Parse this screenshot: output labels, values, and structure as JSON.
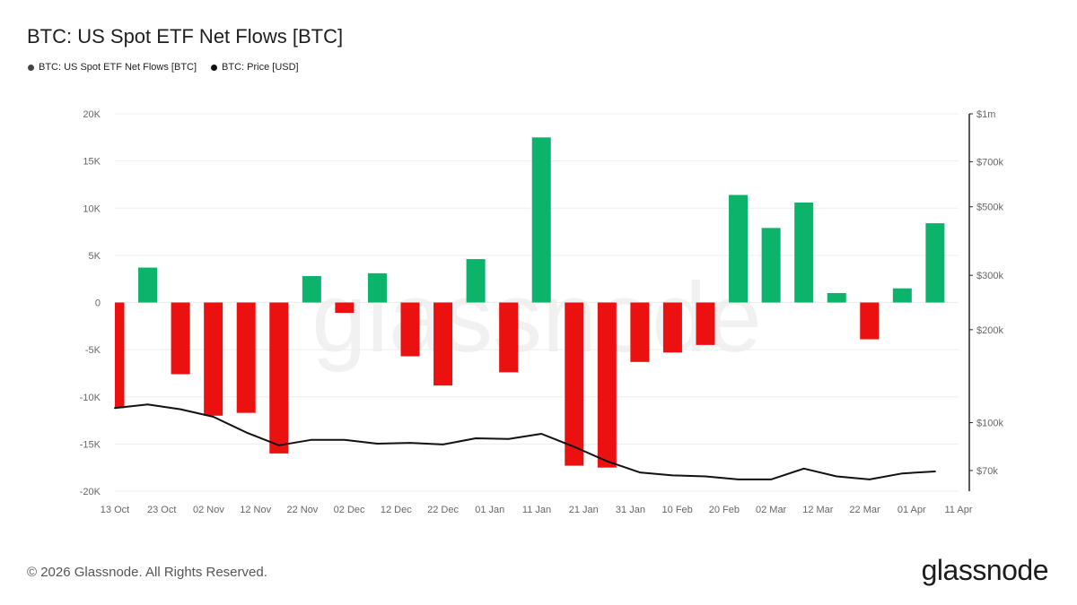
{
  "title": "BTC: US Spot ETF Net Flows [BTC]",
  "legend": [
    {
      "label": "BTC: US Spot ETF Net Flows [BTC]",
      "color": "#444444"
    },
    {
      "label": "BTC: Price [USD]",
      "color": "#111111"
    }
  ],
  "footer": "© 2026 Glassnode. All Rights Reserved.",
  "logo": "glassnode",
  "watermark": "glassnode",
  "colors": {
    "positive": "#0bb36b",
    "negative": "#ec1111",
    "price": "#111111",
    "grid": "#ededed"
  },
  "chart_data": {
    "type": "bar",
    "title": "BTC: US Spot ETF Net Flows [BTC]",
    "x_tick_labels": [
      "13 Oct",
      "23 Oct",
      "02 Nov",
      "12 Nov",
      "22 Nov",
      "02 Dec",
      "12 Dec",
      "22 Dec",
      "01 Jan",
      "11 Jan",
      "21 Jan",
      "31 Jan",
      "10 Feb",
      "20 Feb",
      "02 Mar",
      "12 Mar",
      "22 Mar",
      "01 Apr",
      "11 Apr"
    ],
    "x_range_days": [
      0,
      180
    ],
    "y_left": {
      "min": -20000,
      "max": 20000,
      "ticks": [
        20000,
        15000,
        10000,
        5000,
        0,
        -5000,
        -10000,
        -15000,
        -20000
      ],
      "tick_labels": [
        "20K",
        "15K",
        "10K",
        "5K",
        "0",
        "-5K",
        "-10K",
        "-15K",
        "-20K"
      ]
    },
    "y_right": {
      "scale": "log",
      "min": 60000,
      "max": 1000000,
      "ticks": [
        1000000,
        700000,
        500000,
        300000,
        200000,
        100000,
        70000
      ],
      "tick_labels": [
        "$1m",
        "$700k",
        "$500k",
        "$300k",
        "$200k",
        "$100k",
        "$70k"
      ]
    },
    "series": [
      {
        "name": "BTC: US Spot ETF Net Flows [BTC]",
        "type": "bar",
        "points": [
          {
            "day": 0,
            "value": -11200
          },
          {
            "day": 7,
            "value": 3700
          },
          {
            "day": 14,
            "value": -7600
          },
          {
            "day": 21,
            "value": -12000
          },
          {
            "day": 28,
            "value": -11700
          },
          {
            "day": 35,
            "value": -16000
          },
          {
            "day": 42,
            "value": 2800
          },
          {
            "day": 49,
            "value": -1100
          },
          {
            "day": 56,
            "value": 3100
          },
          {
            "day": 63,
            "value": -5700
          },
          {
            "day": 70,
            "value": -8800
          },
          {
            "day": 77,
            "value": 4600
          },
          {
            "day": 84,
            "value": -7400
          },
          {
            "day": 91,
            "value": 17500
          },
          {
            "day": 98,
            "value": -17300
          },
          {
            "day": 105,
            "value": -17500
          },
          {
            "day": 112,
            "value": -6300
          },
          {
            "day": 119,
            "value": -5300
          },
          {
            "day": 126,
            "value": -4500
          },
          {
            "day": 133,
            "value": 11400
          },
          {
            "day": 140,
            "value": 7900
          },
          {
            "day": 147,
            "value": 10600
          },
          {
            "day": 154,
            "value": 1000
          },
          {
            "day": 161,
            "value": -3900
          },
          {
            "day": 168,
            "value": 1500
          },
          {
            "day": 175,
            "value": 8400
          }
        ]
      },
      {
        "name": "BTC: Price [USD]",
        "type": "line",
        "points": [
          {
            "day": 0,
            "value": 111500
          },
          {
            "day": 7,
            "value": 114500
          },
          {
            "day": 14,
            "value": 110500
          },
          {
            "day": 21,
            "value": 104500
          },
          {
            "day": 28,
            "value": 93000
          },
          {
            "day": 35,
            "value": 84500
          },
          {
            "day": 42,
            "value": 88000
          },
          {
            "day": 49,
            "value": 88000
          },
          {
            "day": 56,
            "value": 85500
          },
          {
            "day": 63,
            "value": 86000
          },
          {
            "day": 70,
            "value": 85000
          },
          {
            "day": 77,
            "value": 89000
          },
          {
            "day": 84,
            "value": 88500
          },
          {
            "day": 91,
            "value": 92000
          },
          {
            "day": 98,
            "value": 83500
          },
          {
            "day": 105,
            "value": 75000
          },
          {
            "day": 112,
            "value": 69000
          },
          {
            "day": 119,
            "value": 67500
          },
          {
            "day": 126,
            "value": 67000
          },
          {
            "day": 133,
            "value": 65500
          },
          {
            "day": 140,
            "value": 65500
          },
          {
            "day": 147,
            "value": 71000
          },
          {
            "day": 154,
            "value": 67000
          },
          {
            "day": 161,
            "value": 65500
          },
          {
            "day": 168,
            "value": 68500
          },
          {
            "day": 175,
            "value": 69500
          }
        ]
      }
    ]
  }
}
